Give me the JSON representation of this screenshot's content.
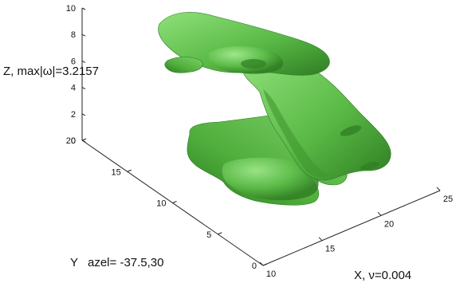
{
  "chart_data": {
    "type": "3d-isosurface",
    "zlabel": "Z, max|ω|=3.2157",
    "ylabel": "Y",
    "view_label": "azel= -37.5,30",
    "xlabel": "X, ν=0.004",
    "x_ticks": [
      "10",
      "15",
      "20",
      "25"
    ],
    "y_ticks": [
      "0",
      "5",
      "10",
      "15",
      "20"
    ],
    "z_ticks": [
      "0",
      "2",
      "4",
      "6",
      "8",
      "10"
    ],
    "xlim": [
      10,
      25
    ],
    "ylim": [
      0,
      20
    ],
    "zlim": [
      0,
      10
    ],
    "azimuth": -37.5,
    "elevation": 30,
    "surface_color": "#5aba46",
    "highlight_color": "#8fe07a",
    "shadow_color": "#2f7d22"
  }
}
